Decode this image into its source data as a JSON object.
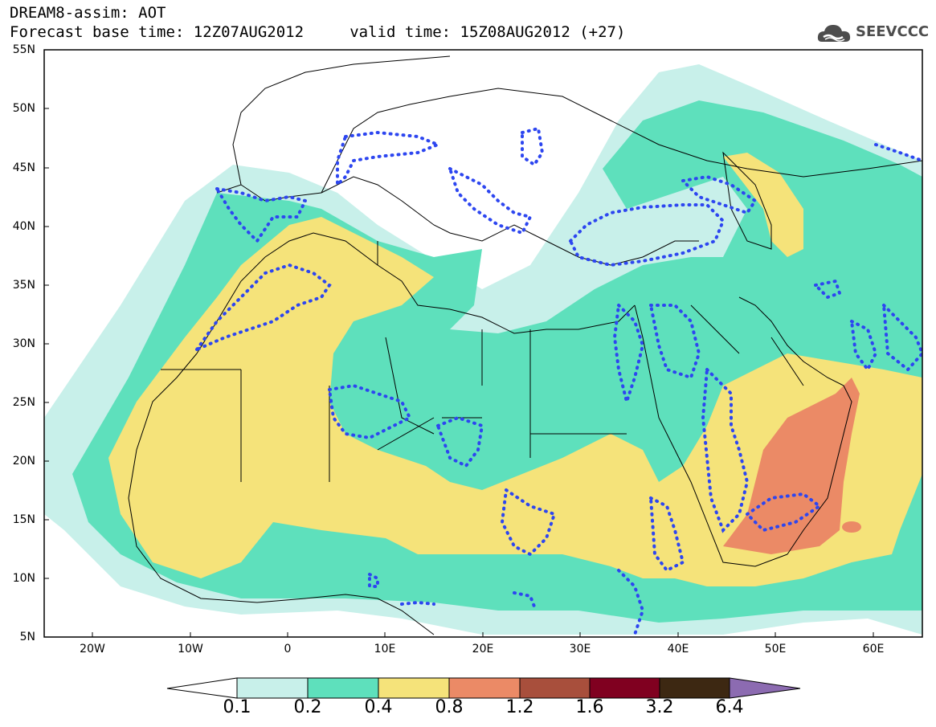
{
  "header": {
    "line1": "DREAM8-assim: AOT",
    "line2": "Forecast base time: 12Z07AUG2012     valid time: 15Z08AUG2012 (+27)"
  },
  "logo": {
    "text": "SEEVCCC",
    "icon": "cloud-icon"
  },
  "map": {
    "lat_labels": [
      "55N",
      "50N",
      "45N",
      "40N",
      "35N",
      "30N",
      "25N",
      "20N",
      "15N",
      "10N",
      "5N"
    ],
    "lon_labels": [
      "20W",
      "10W",
      "0",
      "10E",
      "20E",
      "30E",
      "40E",
      "50E",
      "60E"
    ]
  },
  "colorbar": {
    "labels": [
      "0.1",
      "0.2",
      "0.4",
      "0.8",
      "1.2",
      "1.6",
      "3.2",
      "6.4"
    ],
    "colors": [
      "#ffffff",
      "#c8f0ea",
      "#5ee0bc",
      "#f5e37a",
      "#eb8a66",
      "#a84f3c",
      "#800020",
      "#3d2812",
      "#8c6bb1"
    ]
  },
  "palette": {
    "bin_0_1": "#c8f0ea",
    "bin_0_2": "#5ee0bc",
    "bin_0_4": "#f5e37a",
    "bin_0_8": "#eb8a66",
    "contour_dotted": "#2d46f0"
  }
}
